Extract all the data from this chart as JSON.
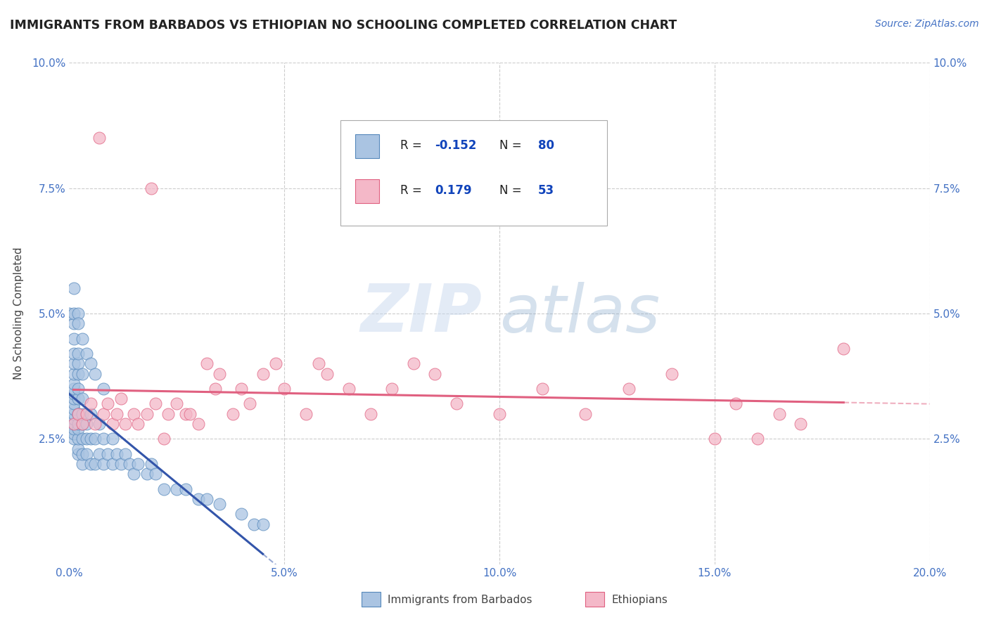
{
  "title": "IMMIGRANTS FROM BARBADOS VS ETHIOPIAN NO SCHOOLING COMPLETED CORRELATION CHART",
  "source": "Source: ZipAtlas.com",
  "ylabel": "No Schooling Completed",
  "xlim": [
    0.0,
    0.2
  ],
  "ylim": [
    0.0,
    0.1
  ],
  "xticks": [
    0.0,
    0.05,
    0.1,
    0.15,
    0.2
  ],
  "yticks": [
    0.0,
    0.025,
    0.05,
    0.075,
    0.1
  ],
  "xticklabels": [
    "0.0%",
    "5.0%",
    "10.0%",
    "15.0%",
    "20.0%"
  ],
  "yticklabels_left": [
    "",
    "2.5%",
    "5.0%",
    "7.5%",
    "10.0%"
  ],
  "yticklabels_right": [
    "",
    "2.5%",
    "5.0%",
    "7.5%",
    "10.0%"
  ],
  "watermark_zip": "ZIP",
  "watermark_atlas": "atlas",
  "series": [
    {
      "label": "Immigrants from Barbados",
      "R": -0.152,
      "N": 80,
      "color": "#aac4e2",
      "edge_color": "#5588bb",
      "trend_color": "#3355aa",
      "x": [
        0.0,
        0.0,
        0.001,
        0.001,
        0.001,
        0.001,
        0.001,
        0.001,
        0.001,
        0.001,
        0.001,
        0.001,
        0.001,
        0.001,
        0.001,
        0.001,
        0.001,
        0.001,
        0.001,
        0.002,
        0.002,
        0.002,
        0.002,
        0.002,
        0.002,
        0.002,
        0.002,
        0.002,
        0.002,
        0.002,
        0.003,
        0.003,
        0.003,
        0.003,
        0.003,
        0.003,
        0.003,
        0.004,
        0.004,
        0.004,
        0.005,
        0.005,
        0.005,
        0.006,
        0.006,
        0.007,
        0.007,
        0.008,
        0.008,
        0.009,
        0.01,
        0.01,
        0.011,
        0.012,
        0.013,
        0.014,
        0.015,
        0.016,
        0.018,
        0.019,
        0.02,
        0.022,
        0.025,
        0.027,
        0.03,
        0.032,
        0.035,
        0.04,
        0.043,
        0.045,
        0.0,
        0.001,
        0.001,
        0.002,
        0.002,
        0.003,
        0.004,
        0.005,
        0.006,
        0.008
      ],
      "y": [
        0.027,
        0.028,
        0.025,
        0.026,
        0.027,
        0.028,
        0.029,
        0.03,
        0.031,
        0.032,
        0.033,
        0.034,
        0.035,
        0.036,
        0.038,
        0.04,
        0.042,
        0.045,
        0.048,
        0.022,
        0.023,
        0.025,
        0.027,
        0.028,
        0.03,
        0.033,
        0.035,
        0.038,
        0.04,
        0.042,
        0.02,
        0.022,
        0.025,
        0.028,
        0.03,
        0.033,
        0.038,
        0.022,
        0.025,
        0.028,
        0.02,
        0.025,
        0.03,
        0.02,
        0.025,
        0.022,
        0.028,
        0.02,
        0.025,
        0.022,
        0.02,
        0.025,
        0.022,
        0.02,
        0.022,
        0.02,
        0.018,
        0.02,
        0.018,
        0.02,
        0.018,
        0.015,
        0.015,
        0.015,
        0.013,
        0.013,
        0.012,
        0.01,
        0.008,
        0.008,
        0.05,
        0.05,
        0.055,
        0.05,
        0.048,
        0.045,
        0.042,
        0.04,
        0.038,
        0.035
      ]
    },
    {
      "label": "Ethiopians",
      "R": 0.179,
      "N": 53,
      "color": "#f4b8c8",
      "edge_color": "#e06080",
      "trend_color": "#e06080",
      "x": [
        0.001,
        0.002,
        0.003,
        0.004,
        0.005,
        0.006,
        0.007,
        0.008,
        0.009,
        0.01,
        0.011,
        0.012,
        0.013,
        0.015,
        0.016,
        0.018,
        0.019,
        0.02,
        0.022,
        0.023,
        0.025,
        0.027,
        0.028,
        0.03,
        0.032,
        0.034,
        0.035,
        0.038,
        0.04,
        0.042,
        0.045,
        0.048,
        0.05,
        0.055,
        0.058,
        0.06,
        0.065,
        0.07,
        0.075,
        0.08,
        0.085,
        0.09,
        0.1,
        0.11,
        0.12,
        0.13,
        0.14,
        0.15,
        0.155,
        0.16,
        0.165,
        0.17,
        0.18
      ],
      "y": [
        0.028,
        0.03,
        0.028,
        0.03,
        0.032,
        0.028,
        0.085,
        0.03,
        0.032,
        0.028,
        0.03,
        0.033,
        0.028,
        0.03,
        0.028,
        0.03,
        0.075,
        0.032,
        0.025,
        0.03,
        0.032,
        0.03,
        0.03,
        0.028,
        0.04,
        0.035,
        0.038,
        0.03,
        0.035,
        0.032,
        0.038,
        0.04,
        0.035,
        0.03,
        0.04,
        0.038,
        0.035,
        0.03,
        0.035,
        0.04,
        0.038,
        0.032,
        0.03,
        0.035,
        0.03,
        0.035,
        0.038,
        0.025,
        0.032,
        0.025,
        0.03,
        0.028,
        0.043
      ]
    }
  ],
  "legend_R_color": "#1144bb",
  "legend_box_color_1": "#aac4e2",
  "legend_box_color_2": "#f4b8c8",
  "background_color": "#ffffff",
  "grid_color": "#cccccc",
  "title_color": "#222222",
  "tick_color": "#4472c4",
  "xlabel_bottom_1": "Immigrants from Barbados",
  "xlabel_bottom_2": "Ethiopians"
}
